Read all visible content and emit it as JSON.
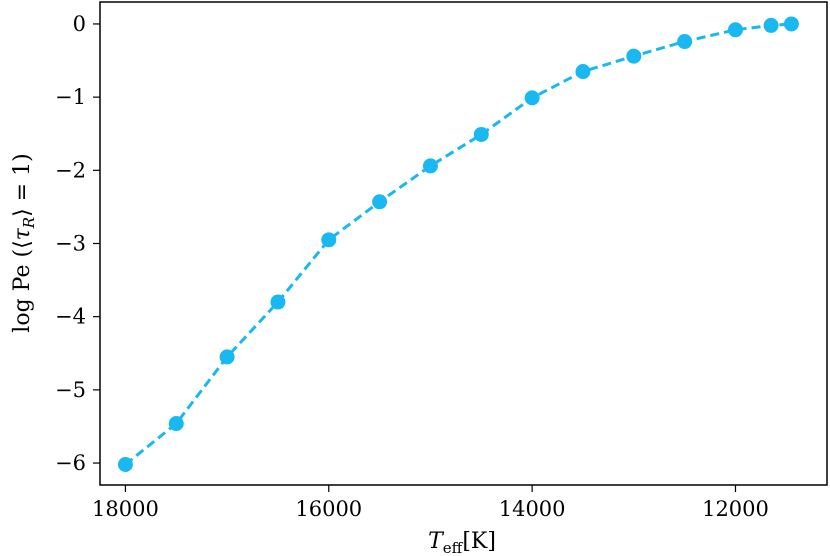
{
  "chart_data": {
    "type": "line",
    "xlabel": "T_eff[K]",
    "xlabel_main": "T",
    "xlabel_sub": "eff",
    "xlabel_unit": "[K]",
    "ylabel": "log Pe (⟨τ_R⟩ = 1)",
    "ylabel_prefix": "log Pe (⟨",
    "ylabel_tau": "τ",
    "ylabel_sub": "R",
    "ylabel_suffix": "⟩ = 1)",
    "xlim": [
      18250,
      11100
    ],
    "ylim": [
      -6.3,
      0.3
    ],
    "x_axis_inverted": true,
    "xticks": [
      18000,
      16000,
      14000,
      12000
    ],
    "xtick_labels": [
      "18000",
      "16000",
      "14000",
      "12000"
    ],
    "yticks": [
      0,
      -1,
      -2,
      -3,
      -4,
      -5,
      -6
    ],
    "ytick_labels": [
      "0",
      "−1",
      "−2",
      "−3",
      "−4",
      "−5",
      "−6"
    ],
    "grid": false,
    "series": [
      {
        "line_style": "dashed",
        "marker": "circle",
        "color": "#1ab8f0",
        "x": [
          18000,
          17500,
          17000,
          16500,
          16000,
          15500,
          15000,
          14500,
          14000,
          13500,
          13000,
          12500,
          12000,
          11650,
          11450
        ],
        "y": [
          -6.02,
          -5.46,
          -4.55,
          -3.8,
          -2.95,
          -2.43,
          -1.94,
          -1.51,
          -1.01,
          -0.65,
          -0.44,
          -0.24,
          -0.08,
          -0.02,
          0.0
        ]
      }
    ]
  }
}
